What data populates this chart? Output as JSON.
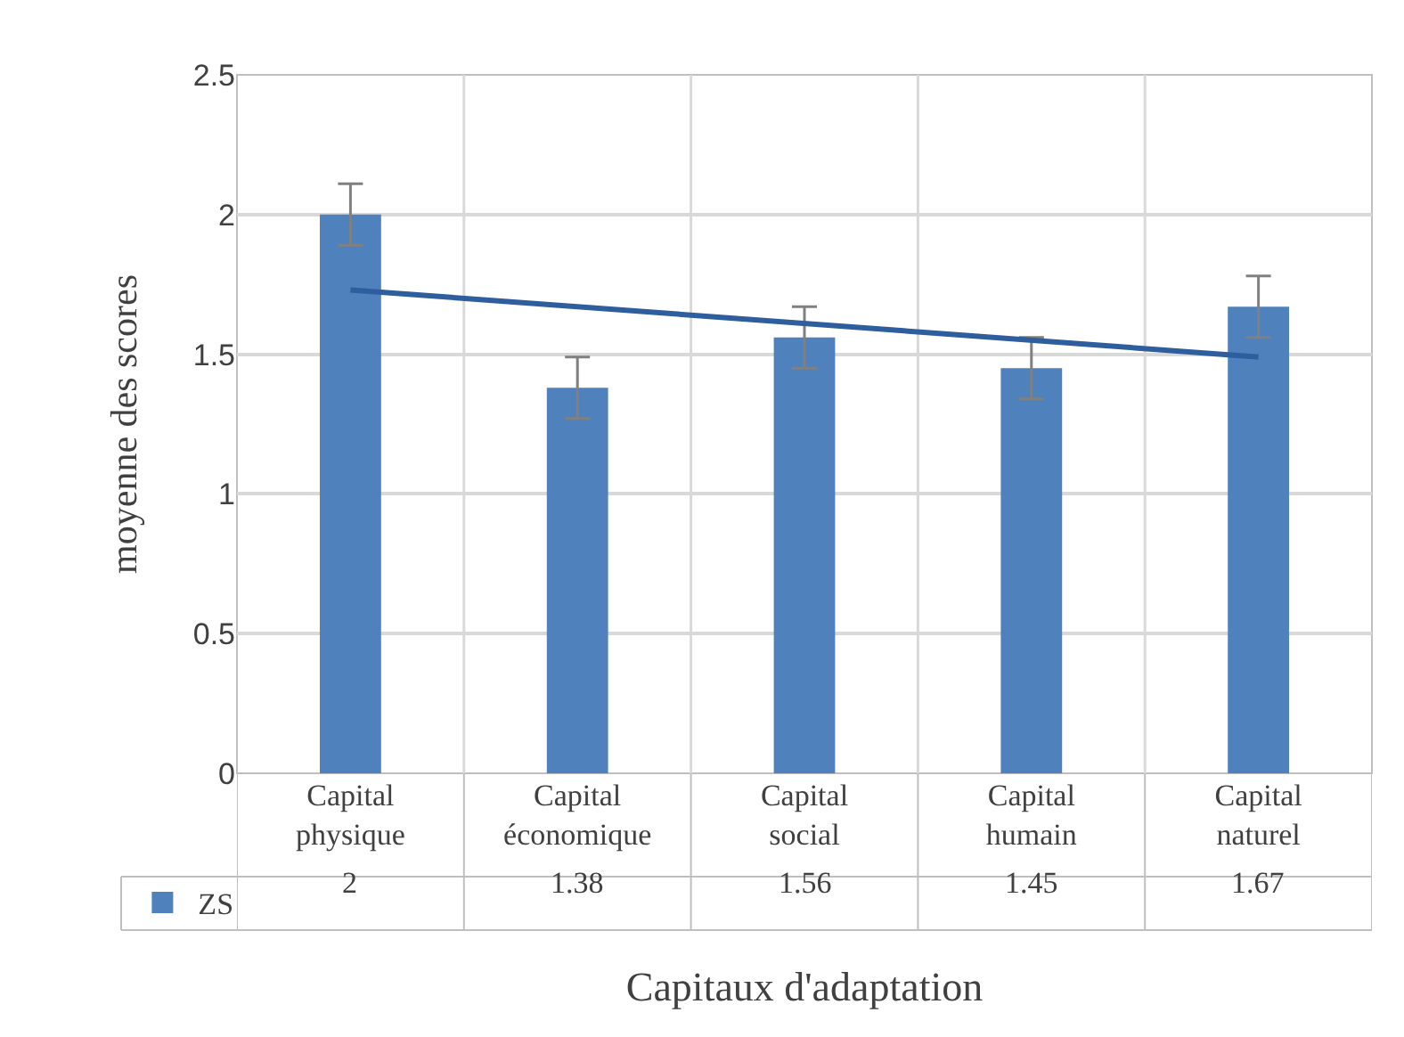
{
  "chart_data": {
    "type": "bar",
    "xlabel": "Capitaux d'adaptation",
    "ylabel": "moyenne des scores",
    "categories": [
      "Capital physique",
      "Capital économique",
      "Capital social",
      "Capital humain",
      "Capital naturel"
    ],
    "series": [
      {
        "name": "ZS",
        "color": "#4f81bd",
        "values": [
          2,
          1.38,
          1.56,
          1.45,
          1.67
        ],
        "value_labels": [
          "2",
          "1.38",
          "1.56",
          "1.45",
          "1.67"
        ],
        "errors": [
          0.11,
          0.11,
          0.11,
          0.11,
          0.11
        ]
      },
      {
        "type": "line",
        "color": "#2f5e9e",
        "x": [
          "Capital physique",
          "Capital naturel"
        ],
        "values": [
          1.73,
          1.49
        ]
      }
    ],
    "ylim": [
      0,
      2.5
    ],
    "yticks": [
      0,
      0.5,
      1,
      1.5,
      2,
      2.5
    ],
    "grid": true,
    "legend": "bottom left"
  }
}
